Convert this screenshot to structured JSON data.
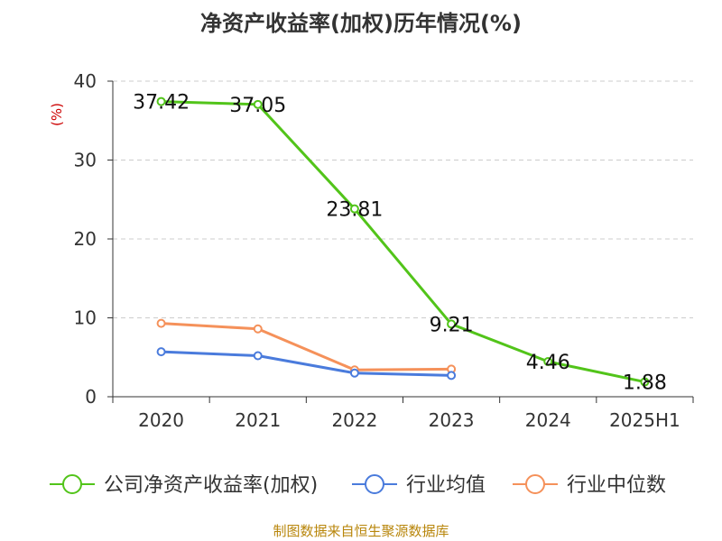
{
  "title": "净资产收益率(加权)历年情况(%)",
  "source": "制图数据来自恒生聚源数据库",
  "chart_data": {
    "type": "line",
    "title": "净资产收益率(加权)历年情况(%)",
    "ylabel": "(%)",
    "xlabel": "",
    "categories": [
      "2020",
      "2021",
      "2022",
      "2023",
      "2024",
      "2025H1"
    ],
    "ylim": [
      0,
      40
    ],
    "yticks": [
      0,
      10,
      20,
      30,
      40
    ],
    "grid": true,
    "legend_position": "bottom",
    "series": [
      {
        "name": "公司净资产收益率(加权)",
        "color": "#52c41a",
        "values": [
          37.42,
          37.05,
          23.81,
          9.21,
          4.46,
          1.88
        ],
        "labels": [
          "37.42",
          "37.05",
          "23.81",
          "9.21",
          "4.46",
          "1.88"
        ],
        "show_labels": true
      },
      {
        "name": "行业均值",
        "color": "#4a7bdc",
        "values": [
          5.7,
          5.2,
          3.0,
          2.7,
          null,
          null
        ],
        "show_labels": false
      },
      {
        "name": "行业中位数",
        "color": "#f5915a",
        "values": [
          9.3,
          8.6,
          3.4,
          3.5,
          null,
          null
        ],
        "show_labels": false
      }
    ]
  }
}
